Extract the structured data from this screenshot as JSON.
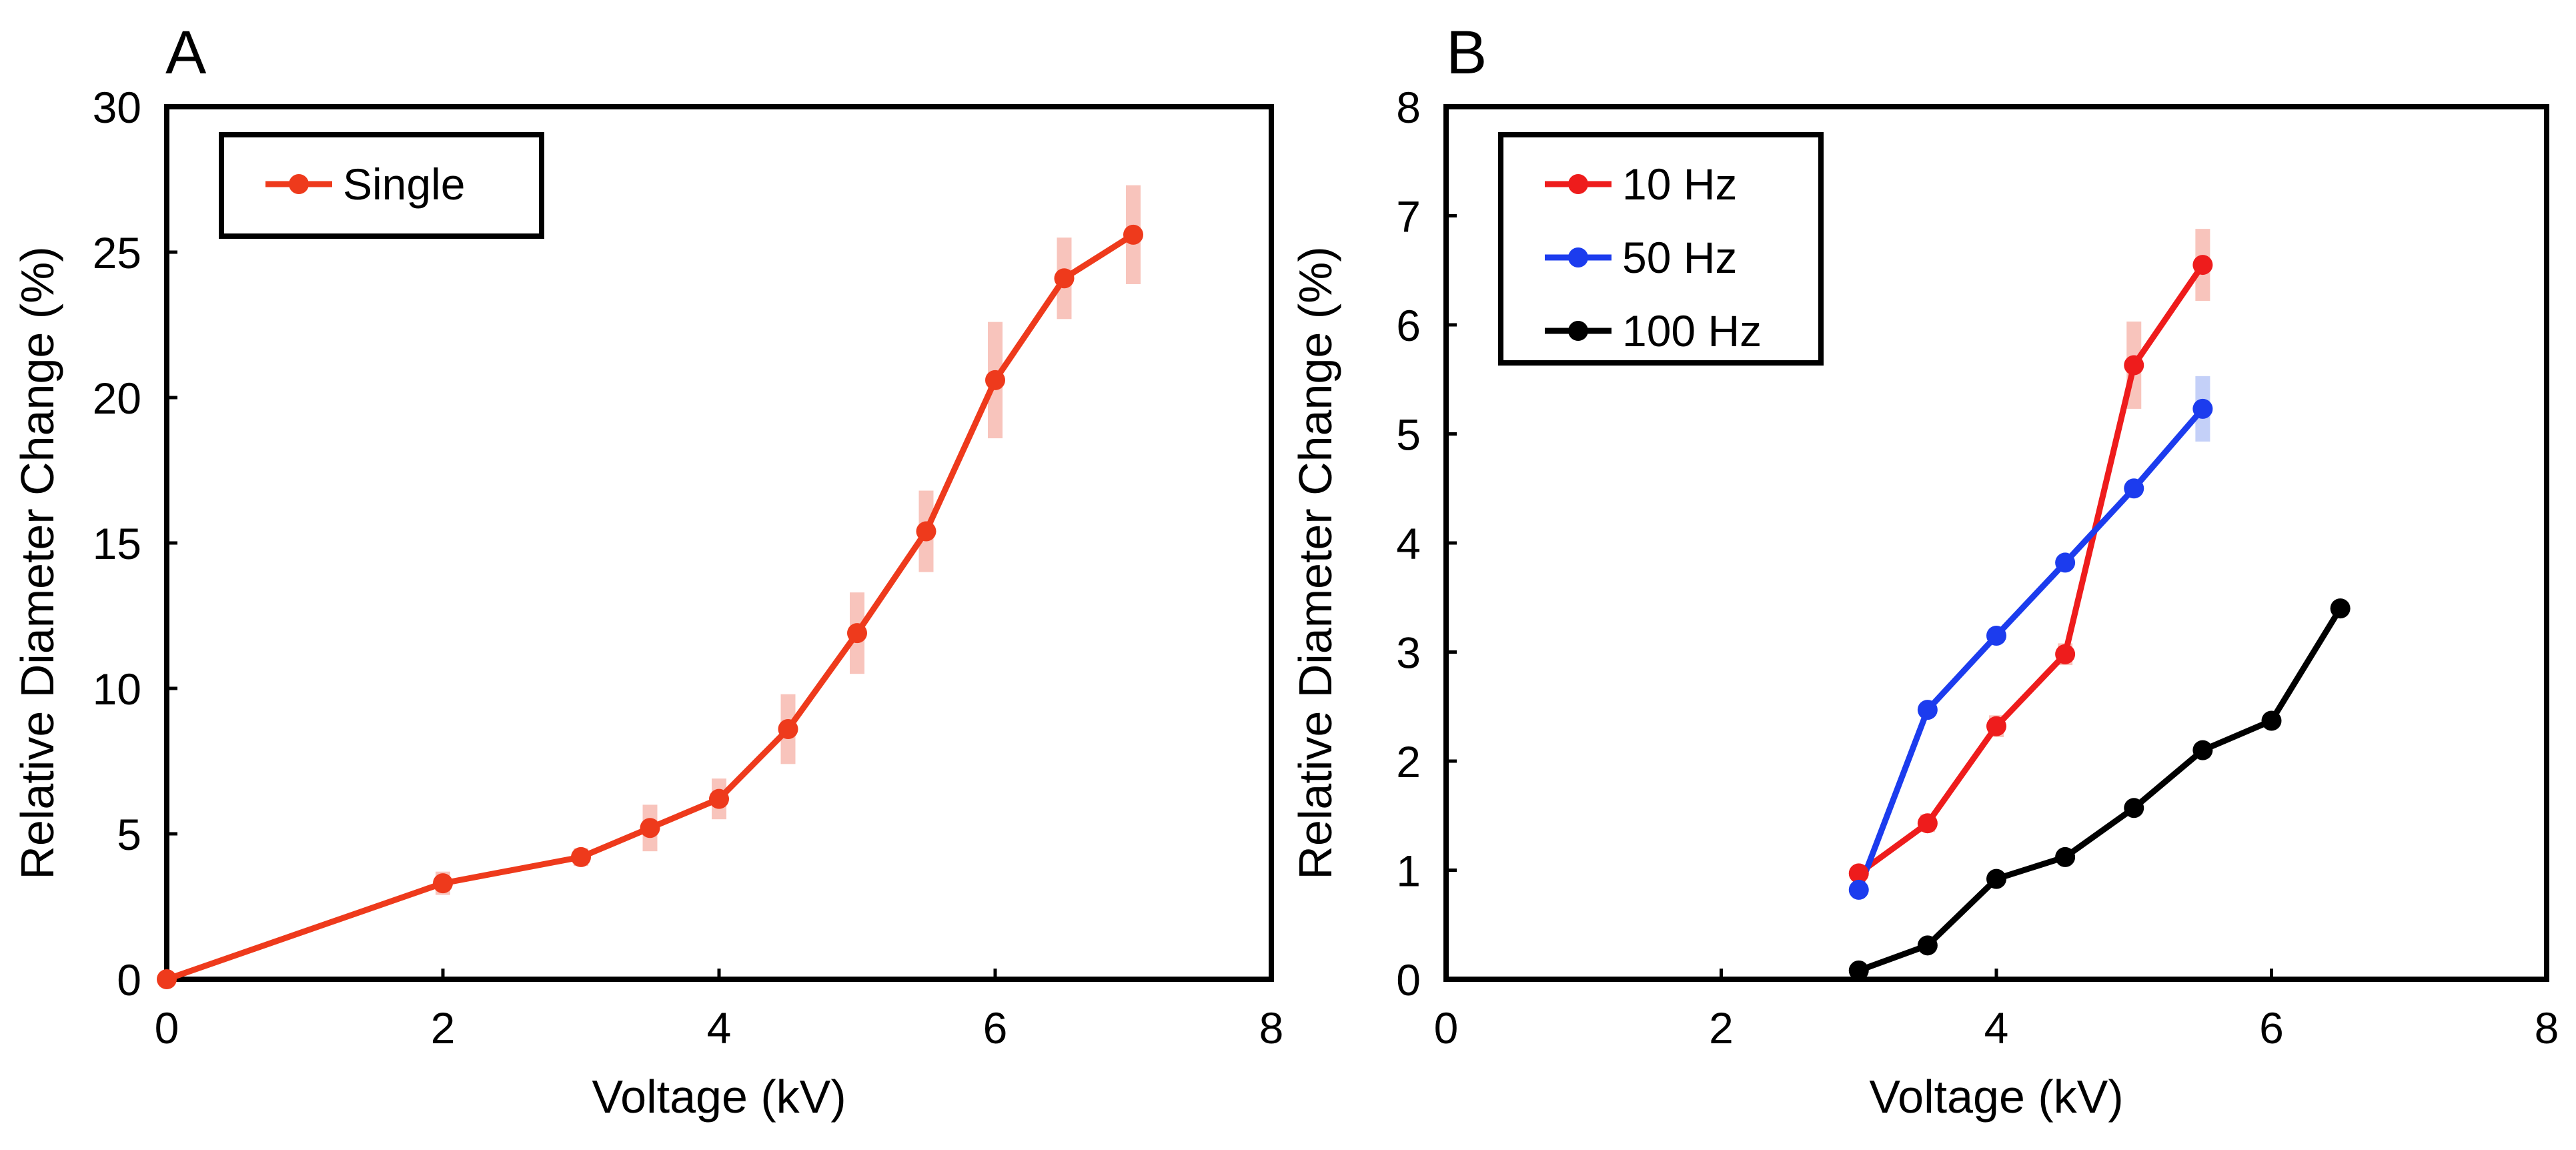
{
  "chart_data": [
    {
      "panel": "A",
      "type": "line",
      "xlabel": "Voltage (kV)",
      "ylabel": "Relative Diameter Change (%)",
      "xlim": [
        0,
        8
      ],
      "ylim": [
        0,
        30
      ],
      "xticks": [
        "0",
        "2",
        "4",
        "6",
        "8"
      ],
      "yticks": [
        "0",
        "5",
        "10",
        "15",
        "20",
        "25",
        "30"
      ],
      "grid": false,
      "legend_position": "top-left",
      "series": [
        {
          "name": "Single",
          "color": "#ee3a1c",
          "error_color": "#f8c4bc",
          "x": [
            0,
            2,
            3,
            3.5,
            4,
            4.5,
            5,
            5.5,
            6,
            6.5,
            7
          ],
          "y": [
            0,
            3.3,
            4.2,
            5.2,
            6.2,
            8.6,
            11.9,
            15.4,
            20.6,
            24.1,
            25.6
          ],
          "err": [
            0.2,
            0.4,
            0.3,
            0.8,
            0.7,
            1.2,
            1.4,
            1.4,
            2.0,
            1.4,
            1.7
          ]
        }
      ]
    },
    {
      "panel": "B",
      "type": "line",
      "xlabel": "Voltage (kV)",
      "ylabel": "Relative Diameter Change (%)",
      "xlim": [
        0,
        8
      ],
      "ylim": [
        0,
        8
      ],
      "xticks": [
        "0",
        "2",
        "4",
        "6",
        "8"
      ],
      "yticks": [
        "0",
        "1",
        "2",
        "3",
        "4",
        "5",
        "6",
        "7",
        "8"
      ],
      "grid": false,
      "legend_position": "top-left",
      "series": [
        {
          "name": "10 Hz",
          "color": "#ee1c1c",
          "error_color": "#f8c4bc",
          "x": [
            3,
            3.5,
            4,
            4.5,
            5,
            5.5
          ],
          "y": [
            0.97,
            1.43,
            2.32,
            2.98,
            5.63,
            6.55
          ],
          "err": [
            0.05,
            0.08,
            0.1,
            0.1,
            0.4,
            0.33
          ]
        },
        {
          "name": "50 Hz",
          "color": "#1c3cee",
          "error_color": "#c4d0f8",
          "x": [
            3,
            3.5,
            4,
            4.5,
            5,
            5.5
          ],
          "y": [
            0.82,
            2.47,
            3.15,
            3.82,
            4.5,
            5.23
          ],
          "err": [
            0.05,
            0.05,
            0.05,
            0.05,
            0.05,
            0.3
          ]
        },
        {
          "name": "100 Hz",
          "color": "#000000",
          "error_color": "#bbbbbb",
          "x": [
            3,
            3.5,
            4,
            4.5,
            5,
            5.5,
            6,
            6.5
          ],
          "y": [
            0.08,
            0.31,
            0.92,
            1.12,
            1.57,
            2.1,
            2.37,
            3.4
          ],
          "err": [
            0.03,
            0.03,
            0.03,
            0.03,
            0.03,
            0.03,
            0.03,
            0.03
          ]
        }
      ]
    }
  ]
}
